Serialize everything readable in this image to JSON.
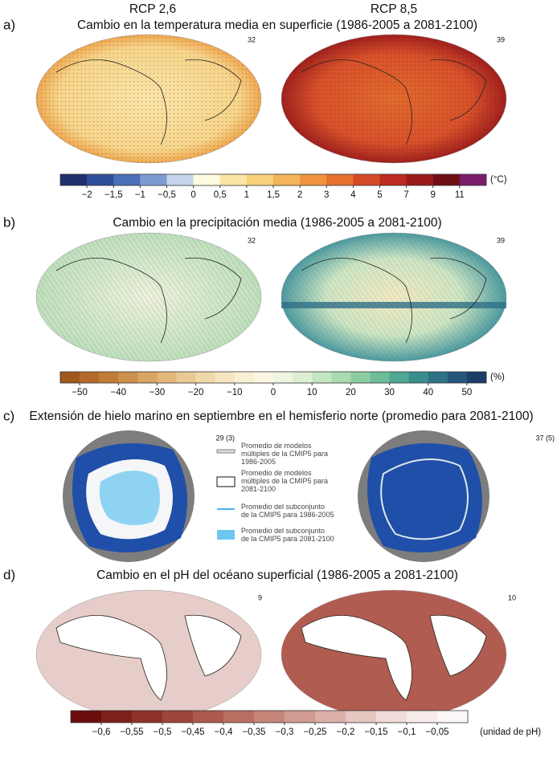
{
  "header": {
    "left_scenario": "RCP 2,6",
    "right_scenario": "RCP 8,5"
  },
  "panels": [
    {
      "label": "a)",
      "title": "Cambio en la temperatura media en superficie (1986-2005 a 2081-2100)",
      "left_count": "32",
      "right_count": "39",
      "colorbar": {
        "colors": [
          "#1f2f6e",
          "#2f4f9a",
          "#4a6fb8",
          "#7d9bd0",
          "#c6d4ec",
          "#fffbe0",
          "#fbe5a6",
          "#f8d07a",
          "#f4b45a",
          "#f0933f",
          "#e6712f",
          "#d54a26",
          "#bd2a1f",
          "#9b1a1a",
          "#6f0f14",
          "#7a1e6a"
        ],
        "ticks": [
          "−2",
          "−1,5",
          "−1",
          "−0,5",
          "0",
          "0,5",
          "1",
          "1,5",
          "2",
          "3",
          "4",
          "5",
          "7",
          "9",
          "11"
        ],
        "unit": "(°C)"
      }
    },
    {
      "label": "b)",
      "title": "Cambio en la precipitación media (1986-2005 a 2081-2100)",
      "left_count": "32",
      "right_count": "39",
      "colorbar": {
        "colors": [
          "#a0581c",
          "#b36a2a",
          "#c07d38",
          "#cc914c",
          "#d8a562",
          "#e1b87a",
          "#e9ca92",
          "#f0d9a9",
          "#f6e6c0",
          "#faf0d4",
          "#fcf7e4",
          "#eef5e0",
          "#dcefd3",
          "#c4e6c2",
          "#a9dab0",
          "#8ccda0",
          "#6dbd98",
          "#4fa893",
          "#3a8e8c",
          "#2e7184",
          "#25577a",
          "#1b3d66"
        ],
        "ticks": [
          "−50",
          "−40",
          "−30",
          "−20",
          "−10",
          "0",
          "10",
          "20",
          "30",
          "40",
          "50"
        ],
        "unit": "(%)"
      }
    },
    {
      "label": "c)",
      "title": "Extensión de hielo marino en septiembre en el hemisferio norte (promedio para 2081-2100)",
      "left_count": "29 (3)",
      "right_count": "37 (5)",
      "legend": [
        "Promedio de modelos múltiples de la CMIP5 para 1986-2005",
        "Promedio de modelos múltiples de la CMIP5 para 2081-2100",
        "Promedio del subconjunto de la CMIP5 para 1986-2005",
        "Promedio del subconjunto de la CMIP5 para 2081-2100"
      ]
    },
    {
      "label": "d)",
      "title": "Cambio en el pH del océano superficial (1986-2005 a 2081-2100)",
      "left_count": "9",
      "right_count": "10",
      "colorbar": {
        "colors": [
          "#6b0d0d",
          "#7e1f1a",
          "#8f3129",
          "#9e4539",
          "#ad5a4d",
          "#bb6f62",
          "#c68579",
          "#d19b91",
          "#dbb0a9",
          "#e5c6c1",
          "#efdbd8",
          "#f7ecea",
          "#fdf8f7"
        ],
        "ticks": [
          "−0,6",
          "−0,55",
          "−0,5",
          "−0,45",
          "−0,4",
          "−0,35",
          "−0,3",
          "−0,25",
          "−0,2",
          "−0,15",
          "−0,1",
          "−0,05"
        ],
        "unit": "(unidad de pH)"
      }
    }
  ]
}
